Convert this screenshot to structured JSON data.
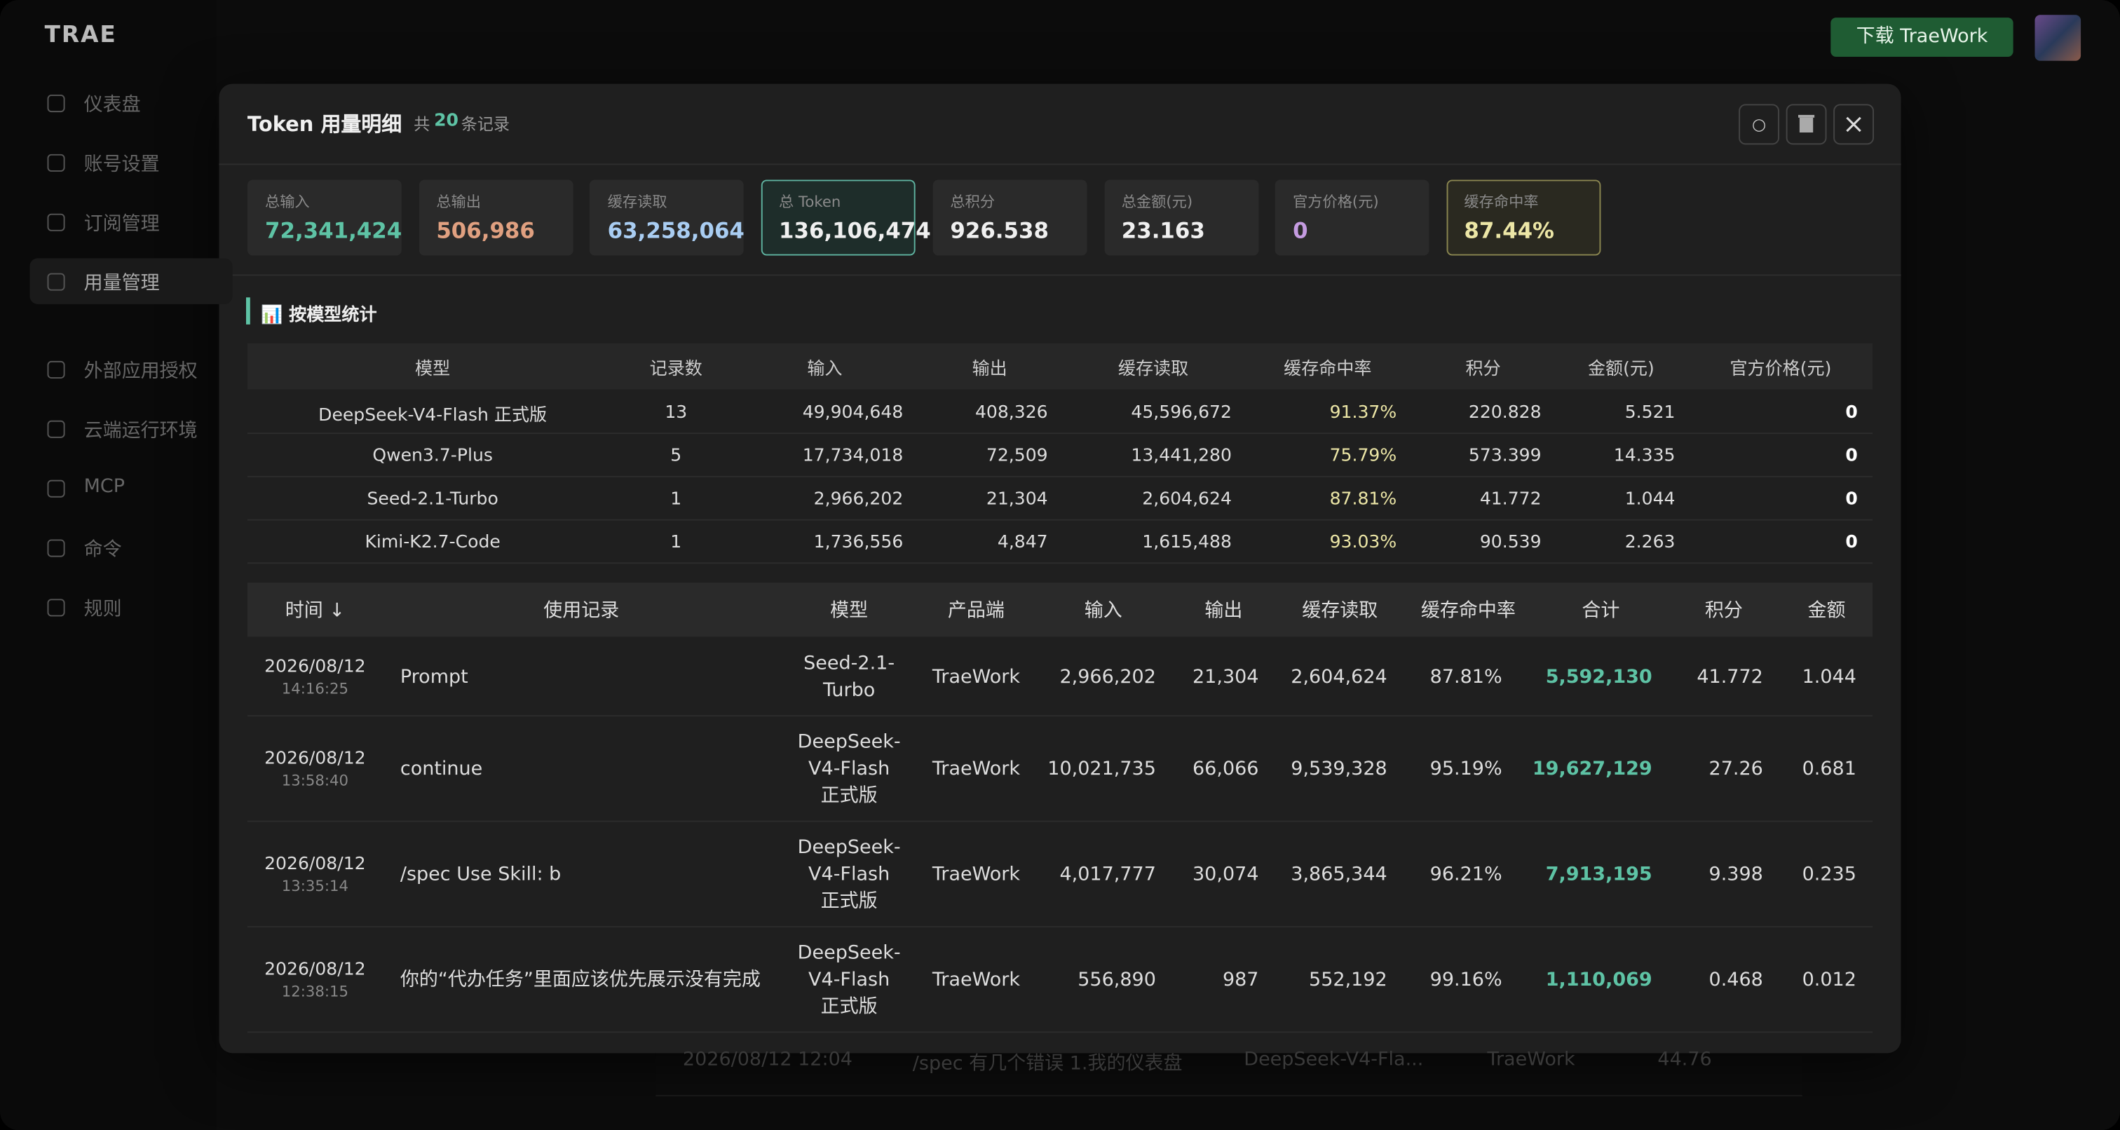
{
  "app": {
    "logo": "TRAE",
    "download_button": "下载 TraeWork",
    "nav": [
      "仪表盘",
      "账号设置",
      "订阅管理",
      "用量管理",
      "外部应用授权",
      "云端运行环境",
      "MCP",
      "命令",
      "规则"
    ]
  },
  "background_row": {
    "time": "2026/08/12 12:04",
    "record": "/spec 有几个错误 1.我的仪表盘",
    "model": "DeepSeek-V4-Fla...",
    "product": "TraeWork",
    "amount": "44.76"
  },
  "modal": {
    "title": "Token 用量明细",
    "count_prefix": "共",
    "count": 20,
    "count_suffix": "条记录",
    "stats": [
      {
        "label": "总输入",
        "value": "72,341,424"
      },
      {
        "label": "总输出",
        "value": "506,986"
      },
      {
        "label": "缓存读取",
        "value": "63,258,064"
      },
      {
        "label": "总 Token",
        "value": "136,106,474"
      },
      {
        "label": "总积分",
        "value": "926.538"
      },
      {
        "label": "总金额(元)",
        "value": "23.163"
      },
      {
        "label": "官方价格(元)",
        "value": "0"
      },
      {
        "label": "缓存命中率",
        "value": "87.44%"
      }
    ],
    "model_section_title": "📊 按模型统计",
    "model_table": {
      "headers": [
        "模型",
        "记录数",
        "输入",
        "输出",
        "缓存读取",
        "缓存命中率",
        "积分",
        "金额(元)",
        "官方价格(元)"
      ],
      "rows": [
        [
          "DeepSeek-V4-Flash 正式版",
          "13",
          "49,904,648",
          "408,326",
          "45,596,672",
          "91.37%",
          "220.828",
          "5.521",
          "0"
        ],
        [
          "Qwen3.7-Plus",
          "5",
          "17,734,018",
          "72,509",
          "13,441,280",
          "75.79%",
          "573.399",
          "14.335",
          "0"
        ],
        [
          "Seed-2.1-Turbo",
          "1",
          "2,966,202",
          "21,304",
          "2,604,624",
          "87.81%",
          "41.772",
          "1.044",
          "0"
        ],
        [
          "Kimi-K2.7-Code",
          "1",
          "1,736,556",
          "4,847",
          "1,615,488",
          "93.03%",
          "90.539",
          "2.263",
          "0"
        ]
      ]
    },
    "records_table": {
      "headers": [
        "时间 ↓",
        "使用记录",
        "模型",
        "产品端",
        "输入",
        "输出",
        "缓存读取",
        "缓存命中率",
        "合计",
        "积分",
        "金额"
      ],
      "rows": [
        {
          "date": "2026/08/12",
          "clock": "14:16:25",
          "cells": [
            "Prompt",
            "Seed-2.1-Turbo",
            "TraeWork",
            "2,966,202",
            "21,304",
            "2,604,624",
            "87.81%",
            "5,592,130",
            "41.772",
            "1.044"
          ]
        },
        {
          "date": "2026/08/12",
          "clock": "13:58:40",
          "cells": [
            "continue",
            "DeepSeek-V4-Flash 正式版",
            "TraeWork",
            "10,021,735",
            "66,066",
            "9,539,328",
            "95.19%",
            "19,627,129",
            "27.26",
            "0.681"
          ]
        },
        {
          "date": "2026/08/12",
          "clock": "13:35:14",
          "cells": [
            "/spec Use Skill: b",
            "DeepSeek-V4-Flash 正式版",
            "TraeWork",
            "4,017,777",
            "30,074",
            "3,865,344",
            "96.21%",
            "7,913,195",
            "9.398",
            "0.235"
          ]
        },
        {
          "date": "2026/08/12",
          "clock": "12:38:15",
          "cells": [
            "你的“代办任务”里面应该优先展示没有完成",
            "DeepSeek-V4-Flash 正式版",
            "TraeWork",
            "556,890",
            "987",
            "552,192",
            "99.16%",
            "1,110,069",
            "0.468",
            "0.012"
          ]
        }
      ]
    }
  }
}
